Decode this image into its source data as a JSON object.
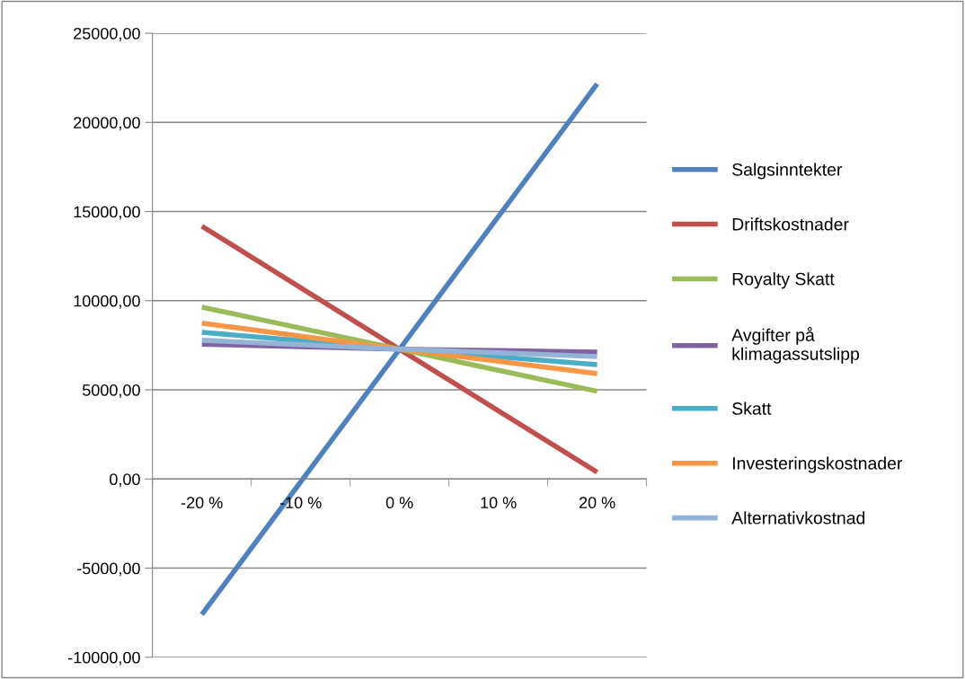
{
  "chart_data": {
    "type": "line",
    "categories": [
      "-20 %",
      "-10 %",
      "0 %",
      "10 %",
      "20 %"
    ],
    "series": [
      {
        "name": "Salgsinntekter",
        "color": "#4f81bd",
        "values": [
          -7600,
          -160,
          7280,
          14720,
          22160
        ]
      },
      {
        "name": "Driftskostnader",
        "color": "#c0504d",
        "values": [
          14180,
          10730,
          7280,
          3830,
          380
        ]
      },
      {
        "name": "Royalty Skatt",
        "color": "#9bbb59",
        "values": [
          9640,
          8460,
          7280,
          6100,
          4920
        ]
      },
      {
        "name": "Avgifter på\nklimagassutslipp",
        "color": "#8064a2",
        "values": [
          7560,
          7420,
          7280,
          7200,
          7120
        ]
      },
      {
        "name": "Skatt",
        "color": "#4bacc6",
        "values": [
          8230,
          7760,
          7280,
          6850,
          6410
        ]
      },
      {
        "name": "Investeringskostnader",
        "color": "#f79646",
        "values": [
          8740,
          8010,
          7280,
          6600,
          5910
        ]
      },
      {
        "name": "Alternativkostnad",
        "color": "#95b3d7",
        "values": [
          7780,
          7530,
          7280,
          7080,
          6870
        ]
      }
    ],
    "ylim": [
      -10000,
      25000
    ],
    "yticks": [
      {
        "value": -10000,
        "label": "-10000,00"
      },
      {
        "value": -5000,
        "label": "-5000,00"
      },
      {
        "value": 0,
        "label": "0,00"
      },
      {
        "value": 5000,
        "label": "5000,00"
      },
      {
        "value": 10000,
        "label": "10000,00"
      },
      {
        "value": 15000,
        "label": "15000,00"
      },
      {
        "value": 20000,
        "label": "20000,00"
      },
      {
        "value": 25000,
        "label": "25000,00"
      }
    ],
    "grid": "y",
    "legend": "right",
    "marker": "none",
    "line_style": "solid"
  }
}
